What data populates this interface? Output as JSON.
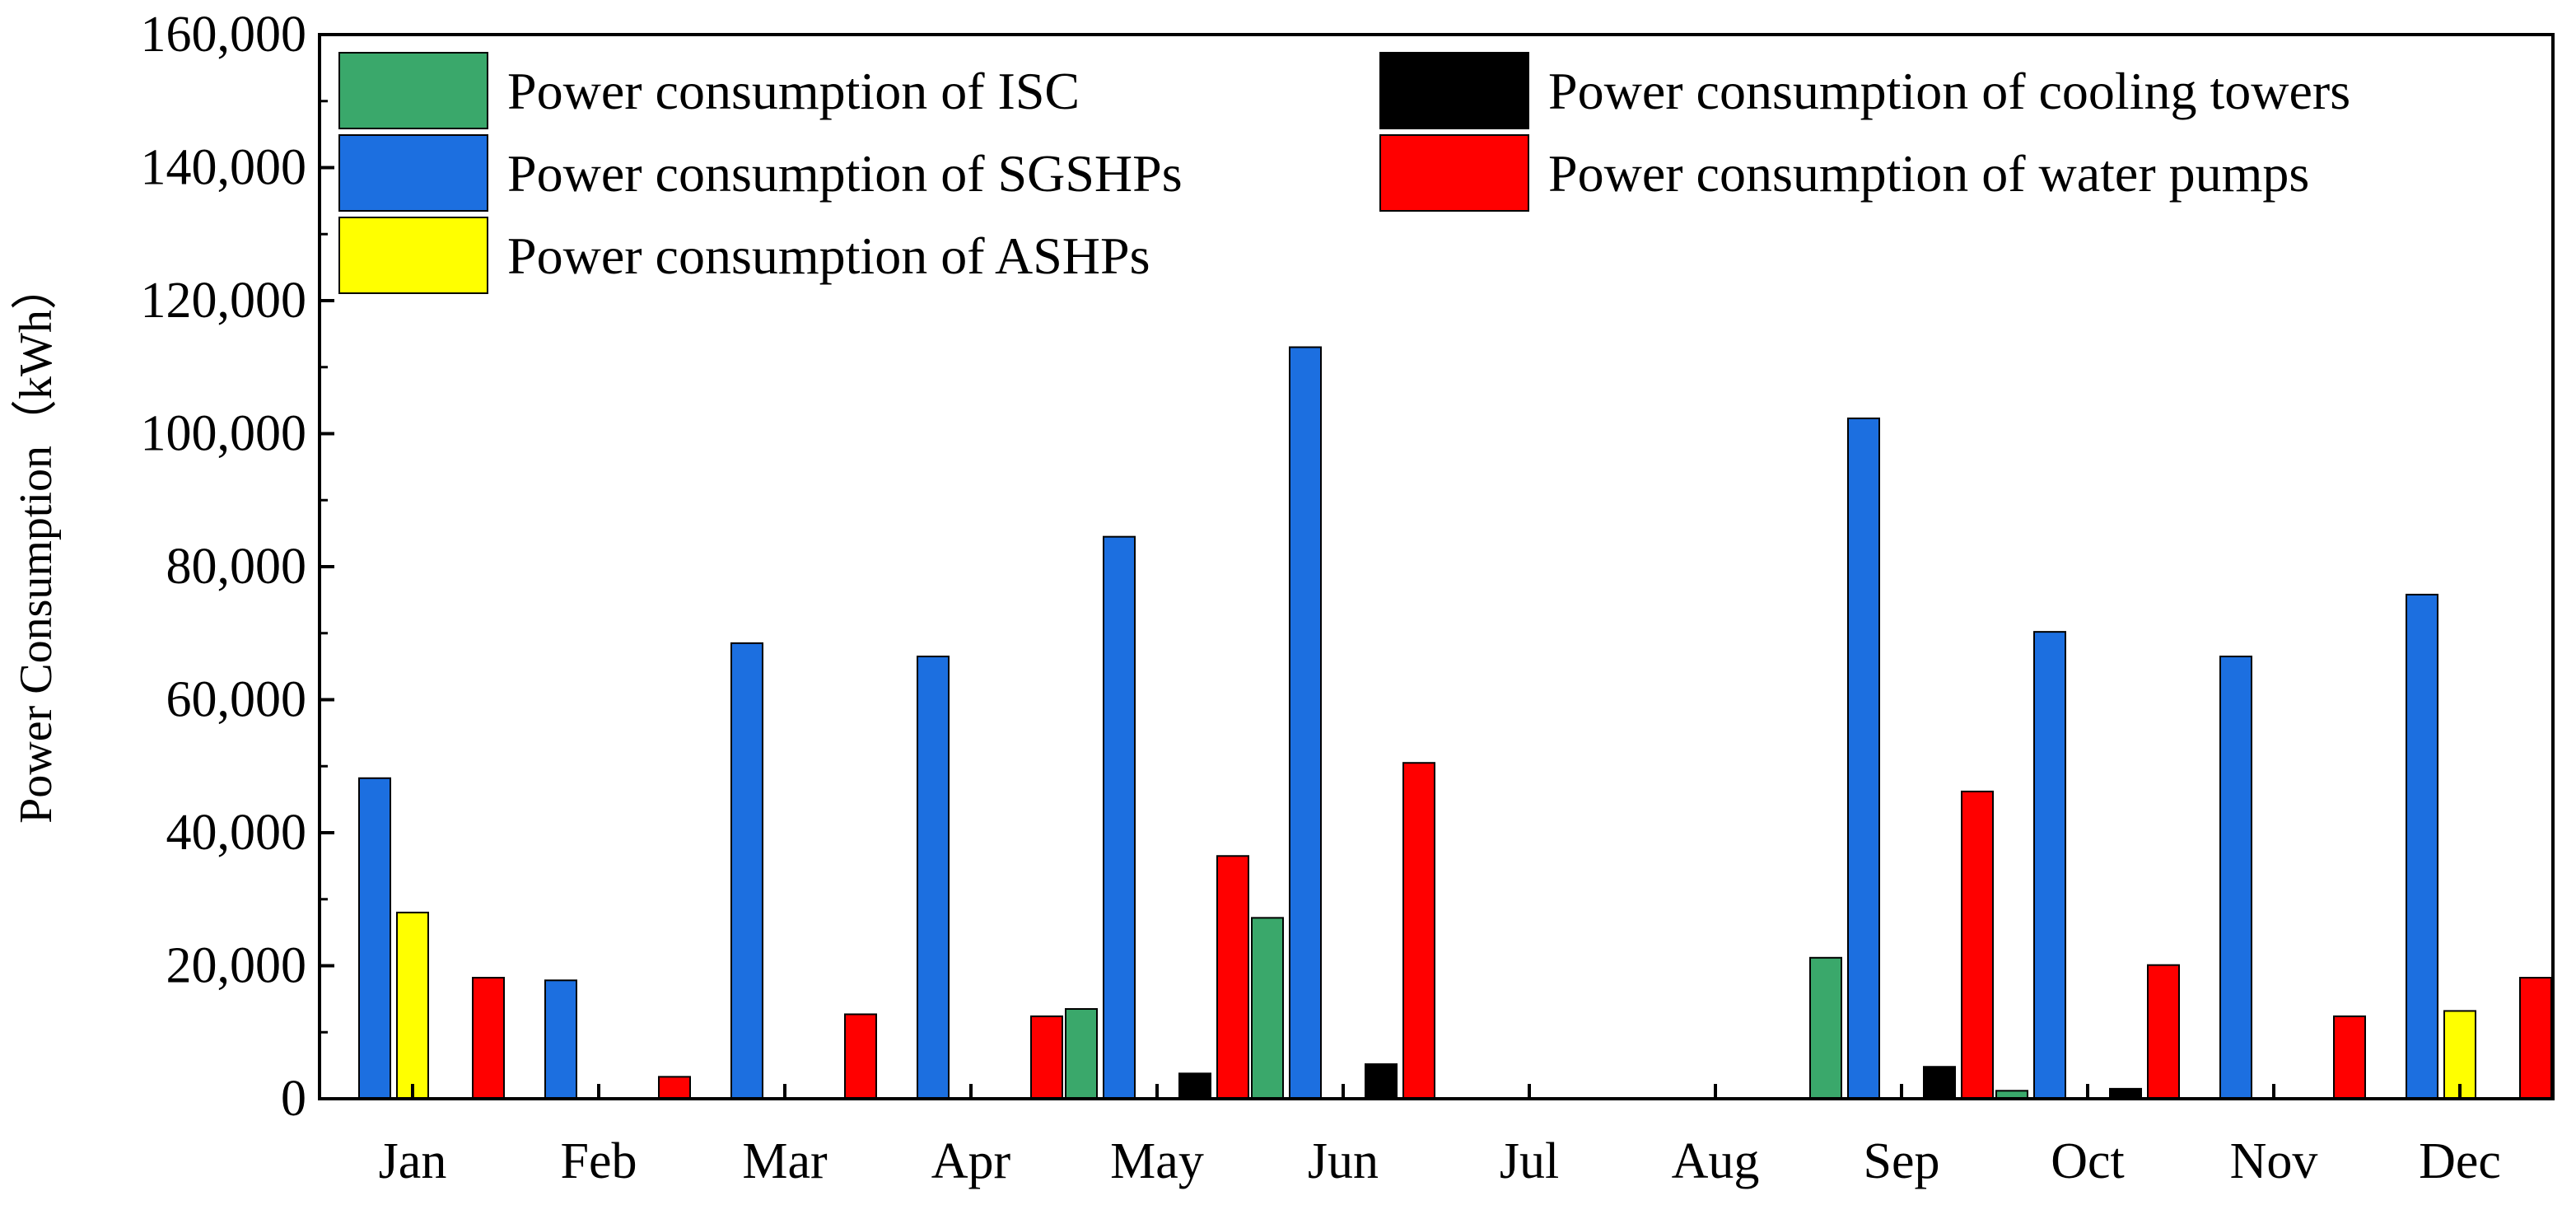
{
  "chart_data": {
    "type": "bar",
    "title": "",
    "xlabel": "",
    "ylabel": "Power Consumption（kWh）",
    "ylim": [
      0,
      160000
    ],
    "yticks": [
      0,
      20000,
      40000,
      60000,
      80000,
      100000,
      120000,
      140000,
      160000
    ],
    "ytick_labels": [
      "0",
      "20,000",
      "40,000",
      "60,000",
      "80,000",
      "100,000",
      "120,000",
      "140,000",
      "160,000"
    ],
    "grid": false,
    "legend_position": "top-left, two columns",
    "categories": [
      "Jan",
      "Feb",
      "Mar",
      "Apr",
      "May",
      "Jun",
      "Jul",
      "Aug",
      "Sep",
      "Oct",
      "Nov",
      "Dec"
    ],
    "series": [
      {
        "name": "Power consumption of ISC",
        "color": "#3aa86b",
        "values": [
          0,
          0,
          0,
          0,
          13500,
          27200,
          0,
          0,
          21200,
          1200,
          0,
          0
        ]
      },
      {
        "name": "Power consumption of SGSHPs",
        "color": "#1c6fe0",
        "values": [
          48200,
          17800,
          68500,
          66500,
          84500,
          113000,
          0,
          0,
          102300,
          70200,
          66500,
          75800
        ]
      },
      {
        "name": "Power consumption of ASHPs",
        "color": "#ffff00",
        "values": [
          28000,
          0,
          0,
          0,
          0,
          0,
          0,
          0,
          0,
          0,
          0,
          13200
        ]
      },
      {
        "name": "Power consumption of cooling towers",
        "color": "#000000",
        "values": [
          0,
          0,
          0,
          0,
          3800,
          5200,
          0,
          0,
          4800,
          1500,
          0,
          0
        ]
      },
      {
        "name": "Power consumption of water pumps",
        "color": "#ff0000",
        "values": [
          18200,
          3300,
          12700,
          12400,
          36500,
          50500,
          0,
          0,
          46200,
          20100,
          12400,
          18200
        ]
      }
    ],
    "legend_order": [
      0,
      3,
      1,
      4,
      2
    ]
  }
}
